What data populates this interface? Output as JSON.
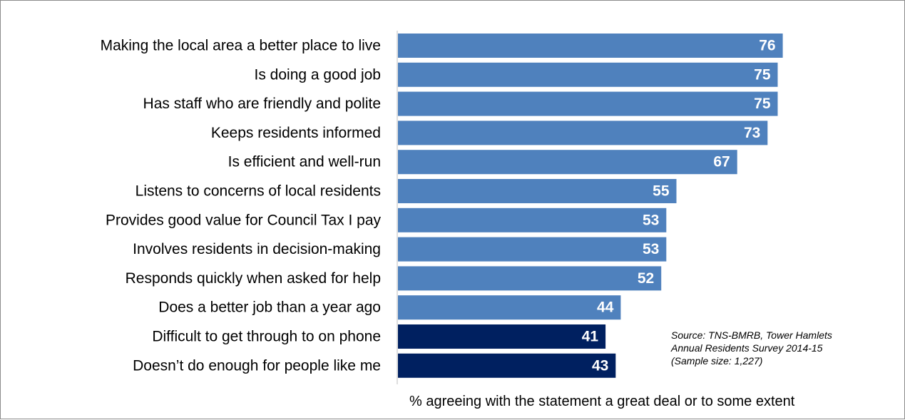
{
  "chart_data": {
    "type": "bar",
    "orientation": "horizontal",
    "categories": [
      "Making the local area a better place to live",
      "Is doing a good job",
      "Has staff who are friendly and polite",
      "Keeps residents informed ",
      "Is efficient and well-run",
      "Listens to concerns of local residents",
      "Provides good value for Council Tax I pay",
      "Involves residents in decision-making",
      "Responds quickly when asked for help",
      "Does a better job than a year ago",
      "Difficult to get through to on phone",
      "Doesn’t do enough for people like me"
    ],
    "values": [
      76,
      75,
      75,
      73,
      67,
      55,
      53,
      53,
      52,
      44,
      41,
      43
    ],
    "bar_colors": [
      "#4f81bd",
      "#4f81bd",
      "#4f81bd",
      "#4f81bd",
      "#4f81bd",
      "#4f81bd",
      "#4f81bd",
      "#4f81bd",
      "#4f81bd",
      "#4f81bd",
      "#002060",
      "#002060"
    ],
    "xlim": [
      0,
      100
    ],
    "grid": false,
    "xlabel": "% agreeing with the statement a great deal or to some extent",
    "annotation": "Source: TNS-BMRB, Tower Hamlets\nAnnual Residents Survey 2014-15\n(Sample size: 1,227)"
  }
}
